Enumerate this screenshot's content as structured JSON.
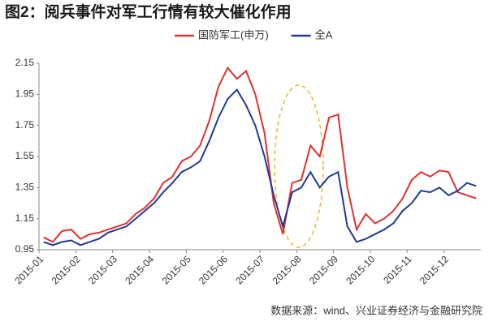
{
  "chart_data": {
    "type": "line",
    "title": "图2：阅兵事件对军工行情有较大催化作用",
    "source": "数据来源：wind、兴业证券经济与金融研究院",
    "categories": [
      "2015-01",
      null,
      null,
      null,
      "2015-02",
      null,
      null,
      null,
      "2015-03",
      null,
      null,
      null,
      "2015-04",
      null,
      null,
      null,
      "2015-05",
      null,
      null,
      null,
      "2015-06",
      null,
      null,
      null,
      "2015-07",
      null,
      null,
      null,
      "2015-08",
      null,
      null,
      null,
      "2015-09",
      null,
      null,
      null,
      "2015-10",
      null,
      null,
      null,
      "2015-11",
      null,
      null,
      null,
      "2015-12",
      null,
      null,
      null
    ],
    "series": [
      {
        "name": "国防军工(申万)",
        "color": "#e03131",
        "values": [
          1.03,
          1.0,
          1.07,
          1.08,
          1.02,
          1.05,
          1.06,
          1.08,
          1.1,
          1.12,
          1.18,
          1.22,
          1.28,
          1.38,
          1.42,
          1.52,
          1.55,
          1.62,
          1.78,
          2.0,
          2.12,
          2.05,
          2.1,
          1.95,
          1.7,
          1.25,
          1.05,
          1.38,
          1.4,
          1.62,
          1.55,
          1.8,
          1.82,
          1.35,
          1.08,
          1.18,
          1.12,
          1.15,
          1.2,
          1.28,
          1.4,
          1.45,
          1.42,
          1.46,
          1.45,
          1.32,
          1.3,
          1.28
        ]
      },
      {
        "name": "全A",
        "color": "#1f3a93",
        "values": [
          1.0,
          0.98,
          1.0,
          1.01,
          0.98,
          1.0,
          1.02,
          1.06,
          1.08,
          1.1,
          1.15,
          1.2,
          1.25,
          1.32,
          1.38,
          1.45,
          1.48,
          1.52,
          1.65,
          1.8,
          1.92,
          1.98,
          1.88,
          1.75,
          1.55,
          1.3,
          1.1,
          1.32,
          1.35,
          1.45,
          1.35,
          1.42,
          1.45,
          1.1,
          1.0,
          1.02,
          1.05,
          1.08,
          1.12,
          1.2,
          1.25,
          1.33,
          1.32,
          1.35,
          1.3,
          1.33,
          1.38,
          1.36
        ]
      }
    ],
    "ylim": [
      0.95,
      2.15
    ],
    "yticks": [
      0.95,
      1.15,
      1.35,
      1.55,
      1.75,
      1.95,
      2.15
    ],
    "grid": false,
    "legend": "top"
  }
}
